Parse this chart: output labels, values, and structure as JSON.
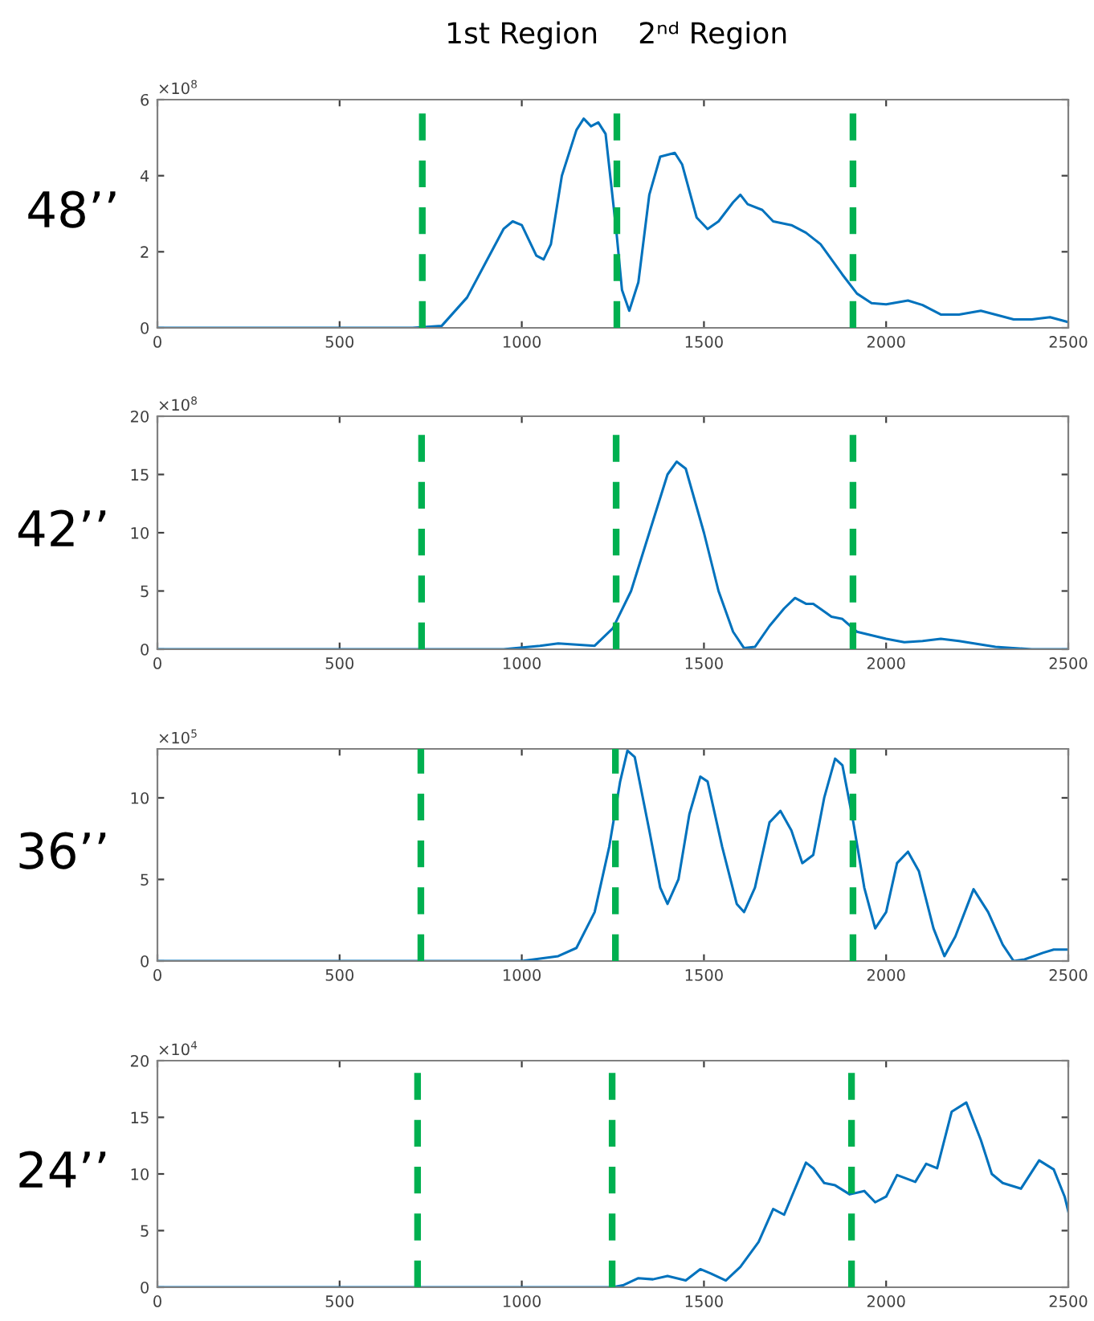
{
  "chart_data": [
    {
      "type": "line",
      "ylabel": "48’’",
      "annotations": [
        "×10$^{8}$",
        "1st Region",
        "2ⁿᵈ Region"
      ],
      "xlim": [
        0,
        2500
      ],
      "xticks": [
        0,
        500,
        1000,
        1500,
        2000,
        2500
      ],
      "ylim": [
        0,
        6
      ],
      "yticks": [
        0,
        2,
        4,
        6
      ],
      "series": [
        {
          "color": "#0072bd",
          "x": [
            0,
            700,
            780,
            850,
            900,
            950,
            975,
            1000,
            1040,
            1060,
            1080,
            1110,
            1150,
            1170,
            1190,
            1210,
            1230,
            1260,
            1275,
            1295,
            1320,
            1350,
            1380,
            1420,
            1440,
            1480,
            1510,
            1540,
            1580,
            1600,
            1620,
            1660,
            1690,
            1740,
            1780,
            1820,
            1880,
            1920,
            1960,
            2000,
            2060,
            2100,
            2150,
            2200,
            2260,
            2300,
            2350,
            2400,
            2450,
            2500
          ],
          "values": [
            0,
            0,
            0.05,
            0.8,
            1.7,
            2.6,
            2.8,
            2.7,
            1.9,
            1.8,
            2.2,
            4.0,
            5.2,
            5.5,
            5.3,
            5.4,
            5.1,
            2.5,
            1.0,
            0.45,
            1.2,
            3.5,
            4.5,
            4.6,
            4.3,
            2.9,
            2.6,
            2.8,
            3.3,
            3.5,
            3.25,
            3.1,
            2.8,
            2.7,
            2.5,
            2.2,
            1.4,
            0.9,
            0.65,
            0.62,
            0.72,
            0.6,
            0.35,
            0.35,
            0.45,
            0.35,
            0.22,
            0.22,
            0.28,
            0.15
          ]
        }
      ],
      "ref_lines": [
        {
          "axis": "x",
          "value": 727,
          "color": "#00b050",
          "line_style": "dashed"
        },
        {
          "axis": "x",
          "value": 1261,
          "color": "#00b050",
          "line_style": "dashed"
        },
        {
          "axis": "x",
          "value": 1909,
          "color": "#00b050",
          "line_style": "dashed"
        }
      ]
    },
    {
      "type": "line",
      "ylabel": "42’’",
      "annotations": [
        "×10$^{8}$"
      ],
      "xlim": [
        0,
        2500
      ],
      "xticks": [
        0,
        500,
        1000,
        1500,
        2000,
        2500
      ],
      "ylim": [
        0,
        20
      ],
      "yticks": [
        0,
        5,
        10,
        15,
        20
      ],
      "series": [
        {
          "color": "#0072bd",
          "x": [
            0,
            950,
            1050,
            1100,
            1150,
            1200,
            1250,
            1300,
            1350,
            1400,
            1425,
            1450,
            1500,
            1540,
            1580,
            1610,
            1640,
            1680,
            1720,
            1750,
            1780,
            1800,
            1850,
            1880,
            1920,
            2000,
            2050,
            2100,
            2150,
            2200,
            2300,
            2400,
            2500
          ],
          "values": [
            0,
            0,
            0.3,
            0.5,
            0.4,
            0.3,
            1.8,
            5,
            10,
            15,
            16.1,
            15.5,
            10,
            5,
            1.5,
            0.1,
            0.2,
            2,
            3.5,
            4.4,
            3.9,
            3.9,
            2.8,
            2.6,
            1.5,
            0.9,
            0.6,
            0.7,
            0.9,
            0.7,
            0.2,
            0,
            0
          ]
        }
      ],
      "ref_lines": [
        {
          "axis": "x",
          "value": 725,
          "color": "#00b050",
          "line_style": "dashed"
        },
        {
          "axis": "x",
          "value": 1259,
          "color": "#00b050",
          "line_style": "dashed"
        },
        {
          "axis": "x",
          "value": 1909,
          "color": "#00b050",
          "line_style": "dashed"
        }
      ]
    },
    {
      "type": "line",
      "ylabel": "36’’",
      "annotations": [
        "×10$^{5}$"
      ],
      "xlim": [
        0,
        2500
      ],
      "xticks": [
        0,
        500,
        1000,
        1500,
        2000,
        2500
      ],
      "ylim": [
        0,
        13
      ],
      "yticks": [
        0,
        5,
        10
      ],
      "series": [
        {
          "color": "#0072bd",
          "x": [
            0,
            1000,
            1100,
            1150,
            1200,
            1240,
            1270,
            1290,
            1310,
            1350,
            1380,
            1400,
            1430,
            1460,
            1490,
            1510,
            1550,
            1590,
            1610,
            1640,
            1680,
            1710,
            1740,
            1770,
            1800,
            1830,
            1860,
            1880,
            1910,
            1940,
            1970,
            2000,
            2030,
            2060,
            2090,
            2130,
            2160,
            2190,
            2240,
            2280,
            2320,
            2350,
            2380,
            2430,
            2460,
            2500
          ],
          "values": [
            0,
            0,
            0.3,
            0.8,
            3,
            7,
            11,
            12.9,
            12.5,
            8,
            4.5,
            3.5,
            5,
            9,
            11.3,
            11,
            7,
            3.5,
            3.0,
            4.5,
            8.5,
            9.2,
            8.0,
            6.0,
            6.5,
            10,
            12.4,
            12.0,
            8.5,
            4.5,
            2.0,
            3.0,
            6,
            6.7,
            5.5,
            2,
            0.3,
            1.5,
            4.4,
            3,
            1,
            0,
            0.1,
            0.5,
            0.7,
            0.7
          ]
        }
      ],
      "ref_lines": [
        {
          "axis": "x",
          "value": 723,
          "color": "#00b050",
          "line_style": "dashed"
        },
        {
          "axis": "x",
          "value": 1257,
          "color": "#00b050",
          "line_style": "dashed"
        },
        {
          "axis": "x",
          "value": 1909,
          "color": "#00b050",
          "line_style": "dashed"
        }
      ]
    },
    {
      "type": "line",
      "ylabel": "24’’",
      "annotations": [
        "×10$^{4}$"
      ],
      "xlim": [
        0,
        2500
      ],
      "xticks": [
        0,
        500,
        1000,
        1500,
        2000,
        2500
      ],
      "ylim": [
        0,
        20
      ],
      "yticks": [
        0,
        5,
        10,
        15,
        20
      ],
      "series": [
        {
          "color": "#0072bd",
          "x": [
            0,
            1250,
            1280,
            1320,
            1360,
            1400,
            1450,
            1490,
            1520,
            1560,
            1600,
            1650,
            1690,
            1720,
            1780,
            1800,
            1830,
            1860,
            1900,
            1940,
            1970,
            2000,
            2030,
            2080,
            2110,
            2140,
            2180,
            2220,
            2260,
            2290,
            2320,
            2370,
            2420,
            2460,
            2490,
            2500
          ],
          "values": [
            0,
            0,
            0.2,
            0.8,
            0.7,
            1.0,
            0.6,
            1.6,
            1.2,
            0.6,
            1.8,
            4,
            6.9,
            6.4,
            11,
            10.5,
            9.2,
            9.0,
            8.2,
            8.5,
            7.5,
            8.0,
            9.9,
            9.3,
            10.9,
            10.5,
            15.5,
            16.3,
            13,
            10,
            9.2,
            8.7,
            11.2,
            10.4,
            8.0,
            6.7
          ]
        }
      ],
      "ref_lines": [
        {
          "axis": "x",
          "value": 714,
          "color": "#00b050",
          "line_style": "dashed"
        },
        {
          "axis": "x",
          "value": 1248,
          "color": "#00b050",
          "line_style": "dashed"
        },
        {
          "axis": "x",
          "value": 1905,
          "color": "#00b050",
          "line_style": "dashed"
        }
      ]
    }
  ]
}
